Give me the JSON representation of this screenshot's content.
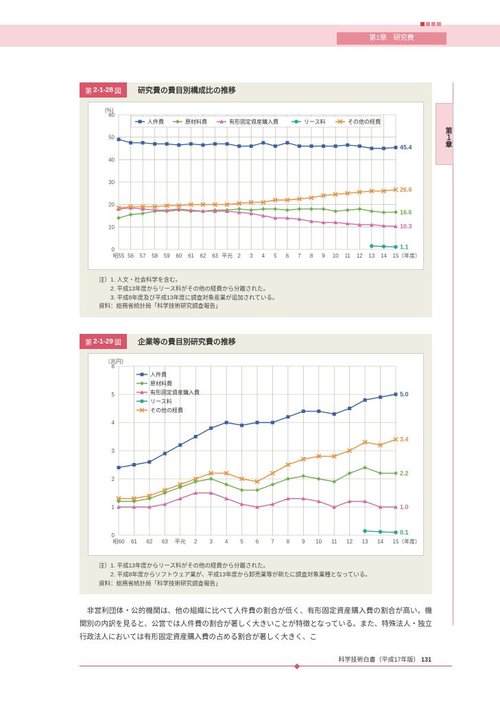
{
  "header": {
    "chapter_label": "第1章　研究費",
    "side_tab": "第１章"
  },
  "panel1": {
    "badge_prefix": "第",
    "badge_code": "2-1-28",
    "badge_suffix": "図",
    "title": "研究費の費目別構成比の推移",
    "chart": {
      "type": "line",
      "y_unit": "(%)",
      "x_unit": "（年度）",
      "ylim": [
        0,
        60
      ],
      "ytick_step": 10,
      "background": "#ffffff",
      "grid_color": "#b8b2a0",
      "x_labels": [
        "昭55",
        "56",
        "57",
        "58",
        "59",
        "60",
        "61",
        "62",
        "63",
        "平元",
        "2",
        "3",
        "4",
        "5",
        "6",
        "7",
        "8",
        "9",
        "10",
        "11",
        "12",
        "13",
        "14",
        "15"
      ],
      "series": [
        {
          "name": "人件費",
          "color": "#3961a6",
          "marker": "square",
          "end_label": "45.4",
          "values": [
            49,
            47.5,
            47.5,
            47,
            47,
            46.5,
            47,
            46.5,
            47,
            47,
            46,
            46,
            47.5,
            46,
            47.5,
            46,
            46,
            46,
            46,
            46.5,
            46,
            45,
            45,
            45.4
          ]
        },
        {
          "name": "原材料費",
          "color": "#6fb24b",
          "marker": "diamond",
          "end_label": "16.6",
          "values": [
            14,
            15.5,
            16,
            17,
            17,
            17.5,
            17,
            17,
            17.5,
            17.5,
            18,
            17.5,
            18,
            18,
            17.5,
            18,
            18,
            18,
            17,
            17.5,
            18,
            17,
            16.5,
            16.6
          ]
        },
        {
          "name": "有形固定資産購入費",
          "color": "#d46aa1",
          "marker": "triangle",
          "end_label": "10.3",
          "values": [
            18,
            18.5,
            18,
            17.5,
            17.5,
            18,
            17.5,
            17,
            17,
            17,
            16.5,
            16,
            15,
            14,
            14,
            13.5,
            12.5,
            12,
            12,
            11.5,
            11,
            11,
            10.5,
            10.3
          ]
        },
        {
          "name": "リース料",
          "color": "#2aa79b",
          "marker": "circle",
          "end_label": "1.1",
          "values": [
            null,
            null,
            null,
            null,
            null,
            null,
            null,
            null,
            null,
            null,
            null,
            null,
            null,
            null,
            null,
            null,
            null,
            null,
            null,
            null,
            null,
            1.5,
            1.3,
            1.1
          ]
        },
        {
          "name": "その他の経費",
          "color": "#e8903a",
          "marker": "x",
          "end_label": "26.6",
          "values": [
            18.5,
            19,
            19,
            19,
            19.5,
            19.5,
            20,
            20,
            20,
            20,
            20.5,
            21,
            21,
            22,
            22,
            22.5,
            23,
            24,
            24.5,
            25,
            25.5,
            26,
            26,
            26.6
          ]
        }
      ]
    },
    "notes": [
      "注）1. 人文・社会科学を含む。",
      "　　2. 平成13年度からリース料がその他の経費から分離された。",
      "　　3. 平成8年度及び平成13年度に調査対象産業が追加されている。",
      "資料：総務省統計局「科学技術研究調査報告」"
    ]
  },
  "panel2": {
    "badge_prefix": "第",
    "badge_code": "2-1-29",
    "badge_suffix": "図",
    "title": "企業等の費目別研究費の推移",
    "chart": {
      "type": "line",
      "y_unit": "（兆円）",
      "x_unit": "（年度）",
      "ylim": [
        0,
        6
      ],
      "ytick_step": 1,
      "background": "#ffffff",
      "grid_color": "#b8b2a0",
      "x_labels": [
        "昭60",
        "61",
        "62",
        "63",
        "平元",
        "2",
        "3",
        "4",
        "5",
        "6",
        "7",
        "8",
        "9",
        "10",
        "11",
        "12",
        "13",
        "14",
        "15"
      ],
      "series": [
        {
          "name": "人件費",
          "color": "#3961a6",
          "marker": "square",
          "end_label": "5.0",
          "values": [
            2.4,
            2.5,
            2.6,
            2.9,
            3.2,
            3.5,
            3.8,
            4.0,
            3.9,
            4.0,
            4.0,
            4.2,
            4.4,
            4.4,
            4.3,
            4.5,
            4.8,
            4.9,
            5.0
          ]
        },
        {
          "name": "原材料費",
          "color": "#6fb24b",
          "marker": "diamond",
          "end_label": "2.2",
          "values": [
            1.2,
            1.2,
            1.3,
            1.5,
            1.7,
            1.9,
            2.0,
            1.8,
            1.6,
            1.6,
            1.8,
            2.0,
            2.1,
            2.0,
            1.9,
            2.2,
            2.4,
            2.2,
            2.2
          ]
        },
        {
          "name": "有形固定資産購入費",
          "color": "#d46aa1",
          "marker": "triangle",
          "end_label": "1.0",
          "values": [
            1.0,
            1.0,
            1.0,
            1.1,
            1.3,
            1.5,
            1.5,
            1.3,
            1.1,
            1.0,
            1.1,
            1.3,
            1.3,
            1.2,
            1.0,
            1.2,
            1.2,
            1.0,
            1.0
          ]
        },
        {
          "name": "リース料",
          "color": "#2aa79b",
          "marker": "circle",
          "end_label": "0.1",
          "values": [
            null,
            null,
            null,
            null,
            null,
            null,
            null,
            null,
            null,
            null,
            null,
            null,
            null,
            null,
            null,
            null,
            0.15,
            0.12,
            0.1
          ]
        },
        {
          "name": "その他の経費",
          "color": "#e8903a",
          "marker": "x",
          "end_label": "3.4",
          "values": [
            1.3,
            1.3,
            1.4,
            1.6,
            1.8,
            2.0,
            2.2,
            2.2,
            2.0,
            1.9,
            2.2,
            2.5,
            2.7,
            2.8,
            2.8,
            3.0,
            3.3,
            3.2,
            3.4
          ]
        }
      ]
    },
    "notes": [
      "注）1. 平成13年度からリース料がその他の経費から分離された。",
      "　　2. 平成8年度からソフトウェア業が、平成13年度から卸売業等が新たに調査対象業種となっている。",
      "資料：総務省統計局「科学技術研究調査報告」"
    ]
  },
  "body": "　非営利団体・公的機関は、他の組織に比べて人件費の割合が低く、有形固定資産購入費の割合が高い。機関別の内訳を見ると、公営では人件費の割合が著しく大きいことが特徴となっている。また、特殊法人・独立行政法人においては有形固定資産購入費の占める割合が著しく大きく、こ",
  "footer": {
    "text": "科学技術白書（平成17年版）",
    "page": "131"
  }
}
